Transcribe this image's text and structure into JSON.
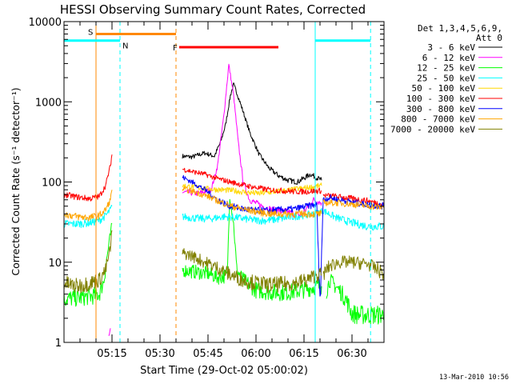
{
  "chart_data": {
    "type": "line",
    "title": "HESSI Observing Summary Count Rates, Corrected",
    "xlabel": "Start Time (29-Oct-02 05:00:02)",
    "ylabel": "Corrected Count Rate (s⁻¹ detector⁻¹)",
    "footer": "13-Mar-2010 10:56",
    "y_scale": "log",
    "ylim": [
      1,
      10000
    ],
    "y_ticks": [
      1,
      10,
      100,
      1000,
      10000
    ],
    "y_tick_labels": [
      "1",
      "10",
      "100",
      "1000",
      "10000"
    ],
    "xlim_minutes": [
      0,
      100
    ],
    "x_ticks_minutes": [
      15,
      30,
      45,
      60,
      75,
      90
    ],
    "x_tick_labels": [
      "05:15",
      "05:30",
      "05:45",
      "06:00",
      "06:15",
      "06:30"
    ],
    "legend_header": [
      "Det 1,3,4,5,6,9,",
      "Att 0"
    ],
    "legend_position": "right-outside",
    "series": [
      {
        "name": "3 - 6 keV",
        "color": "#000000",
        "segments": [
          {
            "t": [
              37,
              40,
              44,
              47,
              49,
              50.5,
              52,
              53,
              54,
              56,
              58,
              61,
              64,
              67,
              70,
              73,
              77,
              80.5
            ],
            "v": [
              210,
              205,
              230,
              210,
              320,
              520,
              1200,
              1650,
              1300,
              750,
              420,
              220,
              150,
              120,
              105,
              100,
              125,
              105
            ]
          }
        ]
      },
      {
        "name": "6 - 12 keV",
        "color": "#ff00ff",
        "segments": [
          {
            "t": [
              14,
              14.5
            ],
            "v": [
              1,
              1.5
            ]
          },
          {
            "t": [
              37,
              42,
              46,
              48,
              50,
              51.5,
              53,
              54.5,
              56,
              58,
              61,
              65,
              70,
              74,
              78,
              80.5
            ],
            "v": [
              75,
              72,
              80,
              160,
              700,
              2900,
              1200,
              300,
              100,
              60,
              52,
              45,
              42,
              38,
              60,
              55
            ]
          }
        ]
      },
      {
        "name": "12 - 25 keV",
        "color": "#00ff00",
        "segments": [
          {
            "t": [
              0,
              5,
              9,
              11,
              12.5,
              13.5,
              15
            ],
            "v": [
              3.5,
              3.6,
              3.8,
              4,
              6,
              12,
              30
            ]
          },
          {
            "t": [
              37,
              42,
              45,
              48,
              51,
              51.8,
              53,
              54,
              56,
              60,
              65,
              70,
              75,
              79,
              80.5
            ],
            "v": [
              8,
              7.5,
              7.2,
              6.5,
              6.8,
              65,
              30,
              8,
              6,
              4.5,
              4.2,
              4.2,
              4.5,
              5,
              5
            ]
          },
          {
            "t": [
              82,
              83,
              86,
              88,
              90,
              92,
              96,
              100
            ],
            "v": [
              4.3,
              6,
              4.5,
              3.5,
              2.3,
              2.2,
              2.2,
              2.2
            ]
          }
        ]
      },
      {
        "name": "25 - 50 keV",
        "color": "#00ffff",
        "segments": [
          {
            "t": [
              0,
              4,
              8,
              11,
              13,
              14.5,
              15
            ],
            "v": [
              30,
              30,
              31,
              33,
              38,
              45,
              50
            ]
          },
          {
            "t": [
              37,
              42,
              46,
              50,
              54,
              58,
              62,
              66,
              70,
              74,
              78,
              81,
              85,
              90,
              95,
              100
            ],
            "v": [
              37,
              35,
              35,
              37,
              36,
              34,
              33,
              34,
              36,
              38,
              40,
              44,
              36,
              31,
              28,
              28
            ]
          }
        ]
      },
      {
        "name": "50 - 100 keV",
        "color": "#ffd700",
        "segments": [
          {
            "t": [
              37,
              41,
              45,
              49,
              53,
              57,
              61,
              65,
              69,
              73,
              77,
              80.5
            ],
            "v": [
              90,
              86,
              82,
              80,
              78,
              74,
              72,
              75,
              78,
              82,
              86,
              90
            ]
          }
        ]
      },
      {
        "name": "100 - 300 keV",
        "color": "#ff0000",
        "segments": [
          {
            "t": [
              0,
              4,
              8,
              11,
              13,
              14.5,
              15
            ],
            "v": [
              70,
              65,
              62,
              66,
              90,
              160,
              220
            ]
          },
          {
            "t": [
              37,
              40,
              44,
              48,
              52,
              56,
              60,
              64,
              68,
              72,
              76,
              80.5
            ],
            "v": [
              145,
              135,
              125,
              110,
              100,
              92,
              85,
              80,
              78,
              76,
              76,
              78
            ]
          },
          {
            "t": [
              81,
              85,
              90,
              95,
              100
            ],
            "v": [
              68,
              66,
              62,
              58,
              52
            ]
          }
        ]
      },
      {
        "name": "300 - 800 keV",
        "color": "#0000ff",
        "segments": [
          {
            "t": [
              37,
              40,
              44,
              48,
              52,
              56,
              60,
              64,
              68,
              72,
              76,
              79
            ],
            "v": [
              115,
              100,
              80,
              60,
              50,
              46,
              44,
              44,
              45,
              46,
              50,
              52
            ]
          },
          {
            "t": [
              79,
              80,
              81,
              83,
              86,
              90,
              95,
              100
            ],
            "v": [
              52,
              3,
              60,
              64,
              60,
              56,
              52,
              50
            ]
          }
        ]
      },
      {
        "name": "800 - 7000 keV",
        "color": "#ffa500",
        "segments": [
          {
            "t": [
              0,
              4,
              8,
              11,
              13,
              14.5,
              15
            ],
            "v": [
              40,
              37,
              36,
              38,
              45,
              60,
              80
            ]
          },
          {
            "t": [
              37,
              41,
              45,
              49,
              53,
              57,
              61,
              65,
              69,
              73,
              77,
              80.5
            ],
            "v": [
              82,
              75,
              66,
              56,
              49,
              45,
              42,
              40,
              40,
              40,
              40,
              40
            ]
          },
          {
            "t": [
              81,
              85,
              90,
              95,
              100
            ],
            "v": [
              55,
              55,
              53,
              50,
              48
            ]
          }
        ]
      },
      {
        "name": "7000 - 20000 keV",
        "color": "#808000",
        "segments": [
          {
            "t": [
              0,
              4,
              8,
              11,
              13,
              14.5,
              15
            ],
            "v": [
              5.5,
              5,
              5.5,
              6,
              8,
              15,
              25
            ]
          },
          {
            "t": [
              37,
              40,
              44,
              48,
              52,
              56,
              60,
              64,
              68,
              72,
              76,
              79,
              80.5
            ],
            "v": [
              13,
              12,
              10,
              8.5,
              7,
              6,
              5.5,
              5.2,
              5.3,
              5.5,
              6,
              7,
              7
            ]
          },
          {
            "t": [
              81,
              83,
              86,
              90,
              95,
              100
            ],
            "v": [
              7,
              9,
              10,
              10,
              9.5,
              7.2
            ]
          }
        ]
      }
    ],
    "observing_intervals": [
      {
        "label": "S",
        "color": "#ff8800",
        "start": 10,
        "end": 35,
        "level": 7000
      },
      {
        "label": "F",
        "color": "#ff0000",
        "start": 36,
        "end": 67,
        "level": 4800
      },
      {
        "label": "N",
        "color": "#00ffff",
        "start": 0,
        "end": 17.5,
        "level": 5800
      },
      {
        "label": "",
        "color": "#00ffff",
        "start": 78.5,
        "end": 95.8,
        "level": 5800
      }
    ],
    "markers": [
      {
        "color": "#ff8800",
        "style": "solid",
        "at": 10
      },
      {
        "color": "#ff8800",
        "style": "dashed",
        "at": 35
      },
      {
        "color": "#00ffff",
        "style": "dashed",
        "at": 17.5
      },
      {
        "color": "#00ffff",
        "style": "solid",
        "at": 78.5
      },
      {
        "color": "#00ffff",
        "style": "dashed",
        "at": 95.8
      }
    ]
  }
}
